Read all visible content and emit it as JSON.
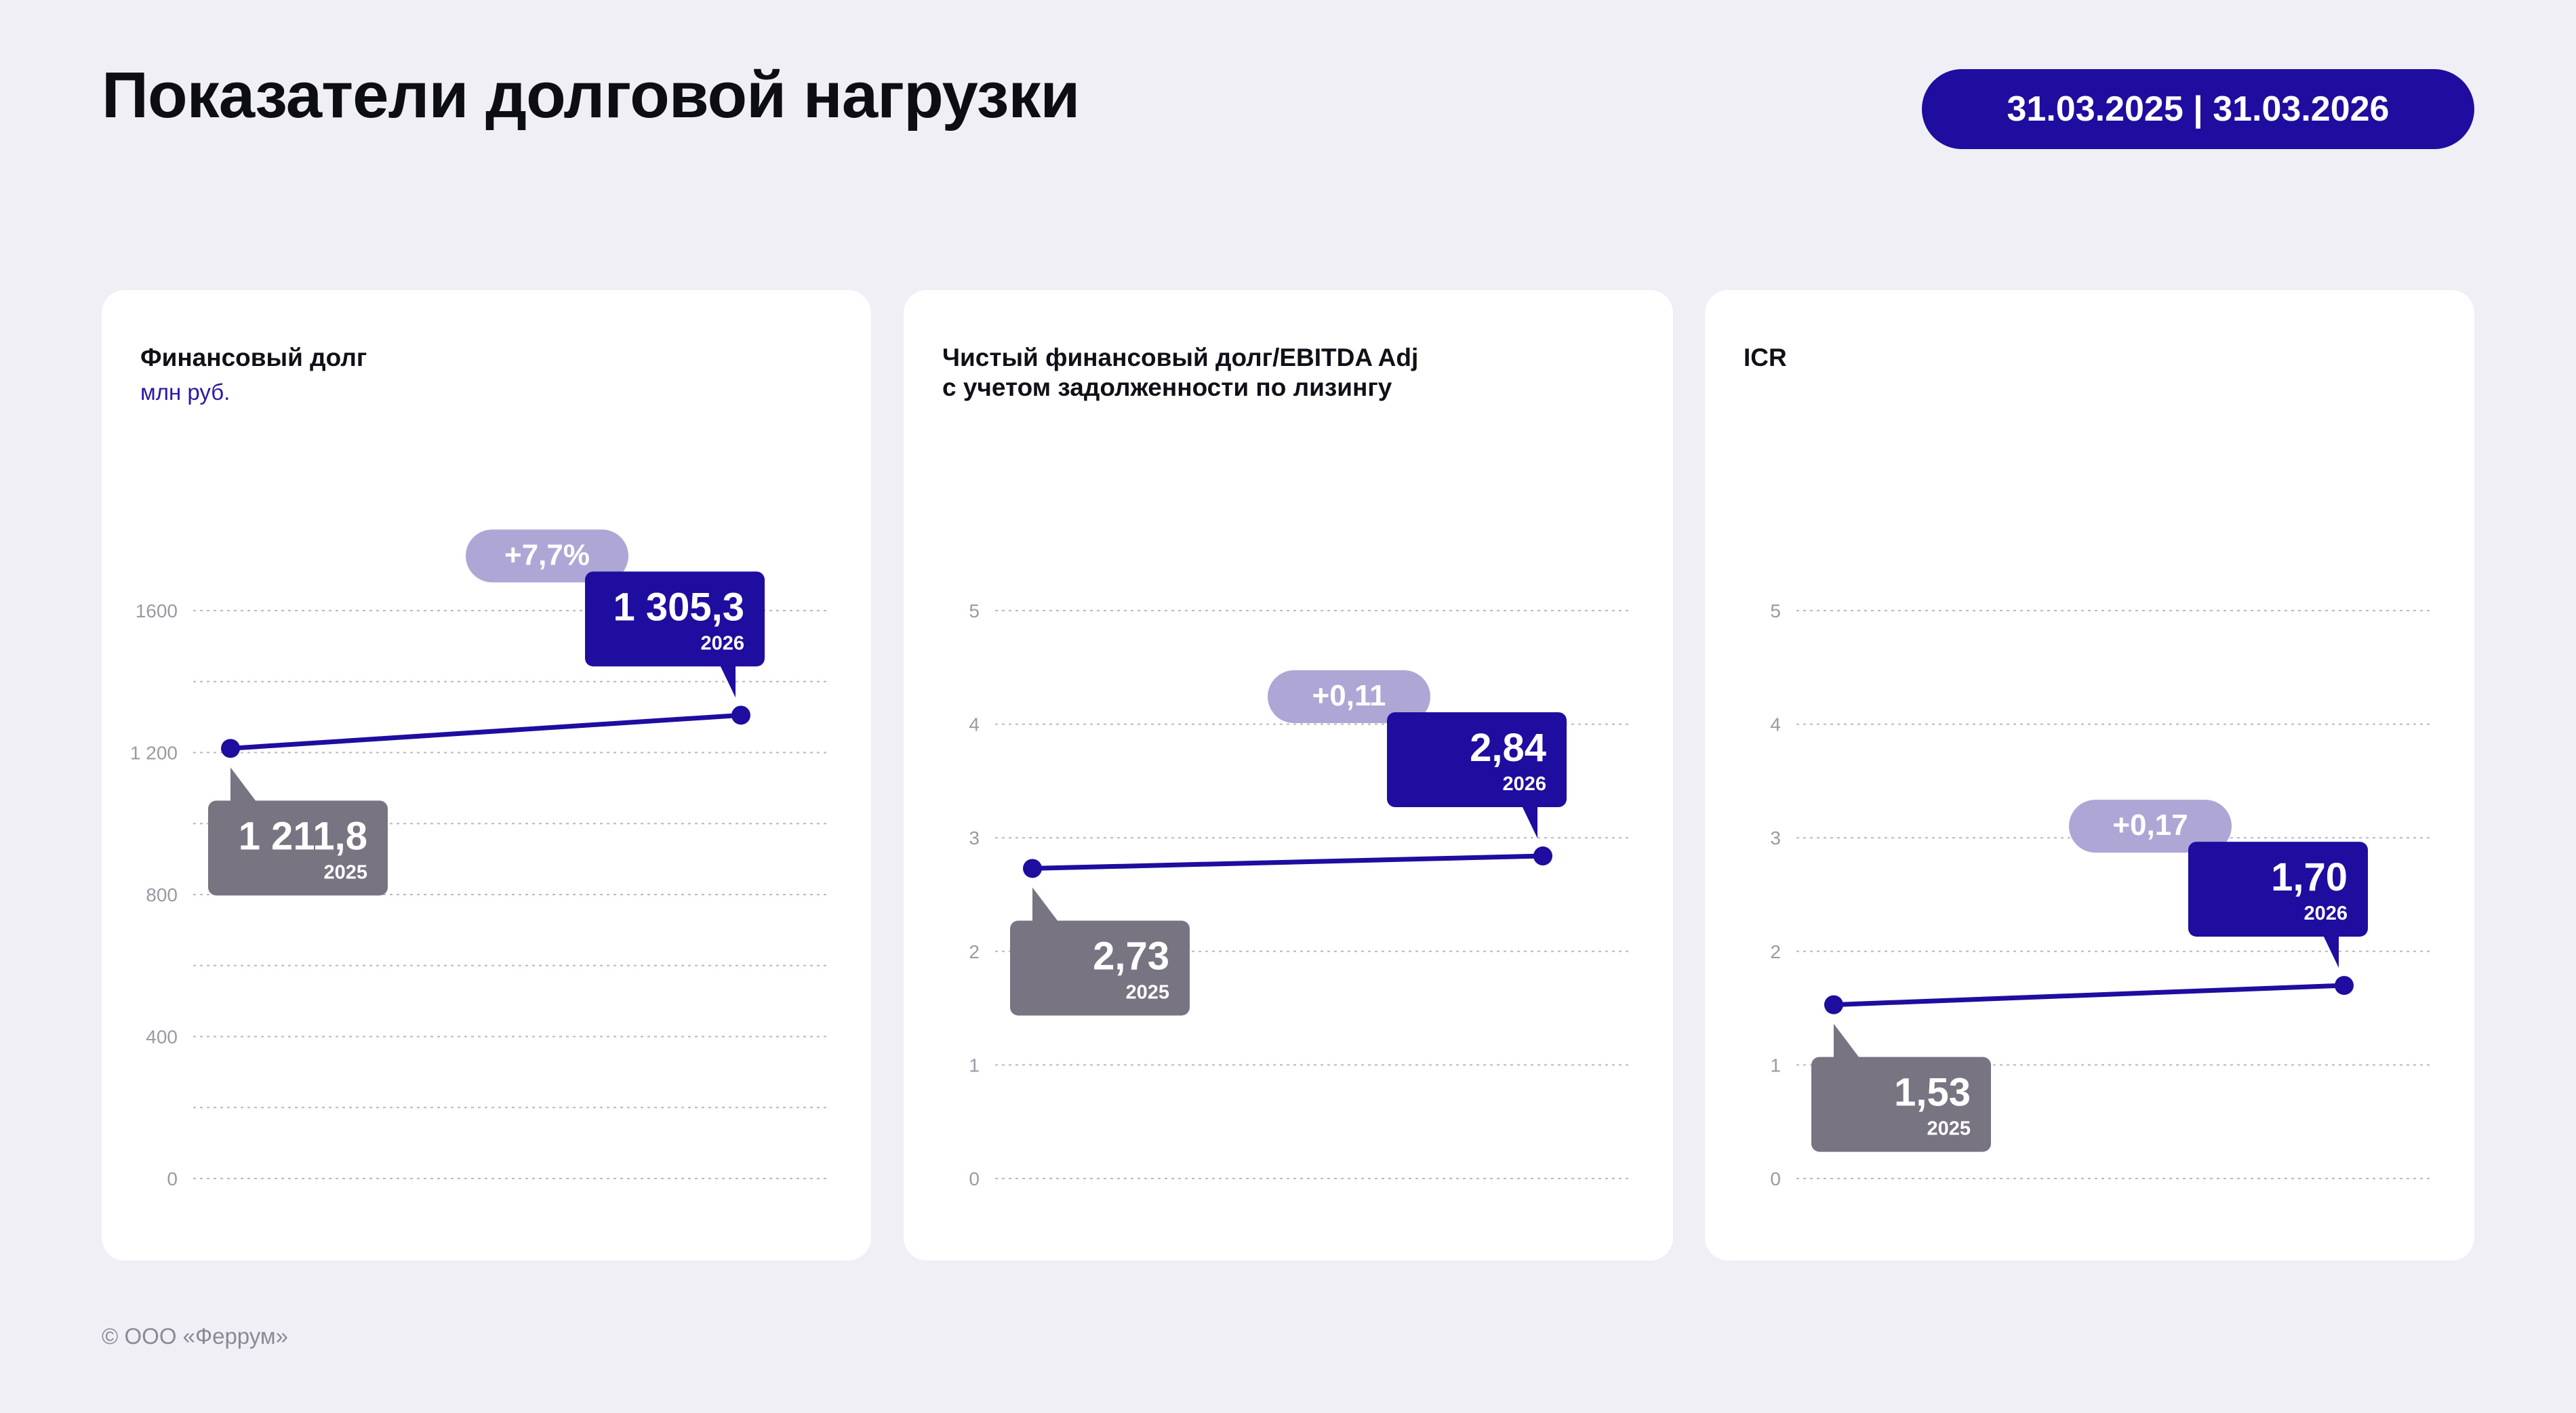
{
  "header": {
    "title": "Показатели долговой нагрузки",
    "period": "31.03.2025 | 31.03.2026"
  },
  "colors": {
    "accent": "#1f0da0",
    "previous": "#787482",
    "change": "#aea6d4",
    "grid": "#b8b8c2",
    "tick": "#9a9aa4"
  },
  "chart_data": [
    {
      "type": "line",
      "title": "Финансовый долг",
      "ylabel": "млн руб.",
      "ylim": [
        0,
        1600
      ],
      "yticks": [
        0,
        400,
        800,
        1200,
        1600
      ],
      "ytick_labels": [
        "0",
        "400",
        "800",
        "1 200",
        "1600"
      ],
      "grid_step": 200,
      "x": [
        "2025",
        "2026"
      ],
      "values": [
        1211.8,
        1305.3
      ],
      "value_labels": [
        "1 211,8",
        "1 305,3"
      ],
      "change_label": "+7,7%"
    },
    {
      "type": "line",
      "title": "Чистый финансовый долг/EBITDA Adj\nс учетом задолженности по лизингу",
      "ylabel": "",
      "ylim": [
        0,
        5
      ],
      "yticks": [
        0,
        1,
        2,
        3,
        4,
        5
      ],
      "ytick_labels": [
        "0",
        "1",
        "2",
        "3",
        "4",
        "5"
      ],
      "grid_step": 1,
      "x": [
        "2025",
        "2026"
      ],
      "values": [
        2.73,
        2.84
      ],
      "value_labels": [
        "2,73",
        "2,84"
      ],
      "change_label": "+0,11"
    },
    {
      "type": "line",
      "title": "ICR",
      "ylabel": "",
      "ylim": [
        0,
        5
      ],
      "yticks": [
        0,
        1,
        2,
        3,
        4,
        5
      ],
      "ytick_labels": [
        "0",
        "1",
        "2",
        "3",
        "4",
        "5"
      ],
      "grid_step": 1,
      "x": [
        "2025",
        "2026"
      ],
      "values": [
        1.53,
        1.7
      ],
      "value_labels": [
        "1,53",
        "1,70"
      ],
      "change_label": "+0,17"
    }
  ],
  "footer": {
    "copyright": "© ООО «Феррум»"
  }
}
